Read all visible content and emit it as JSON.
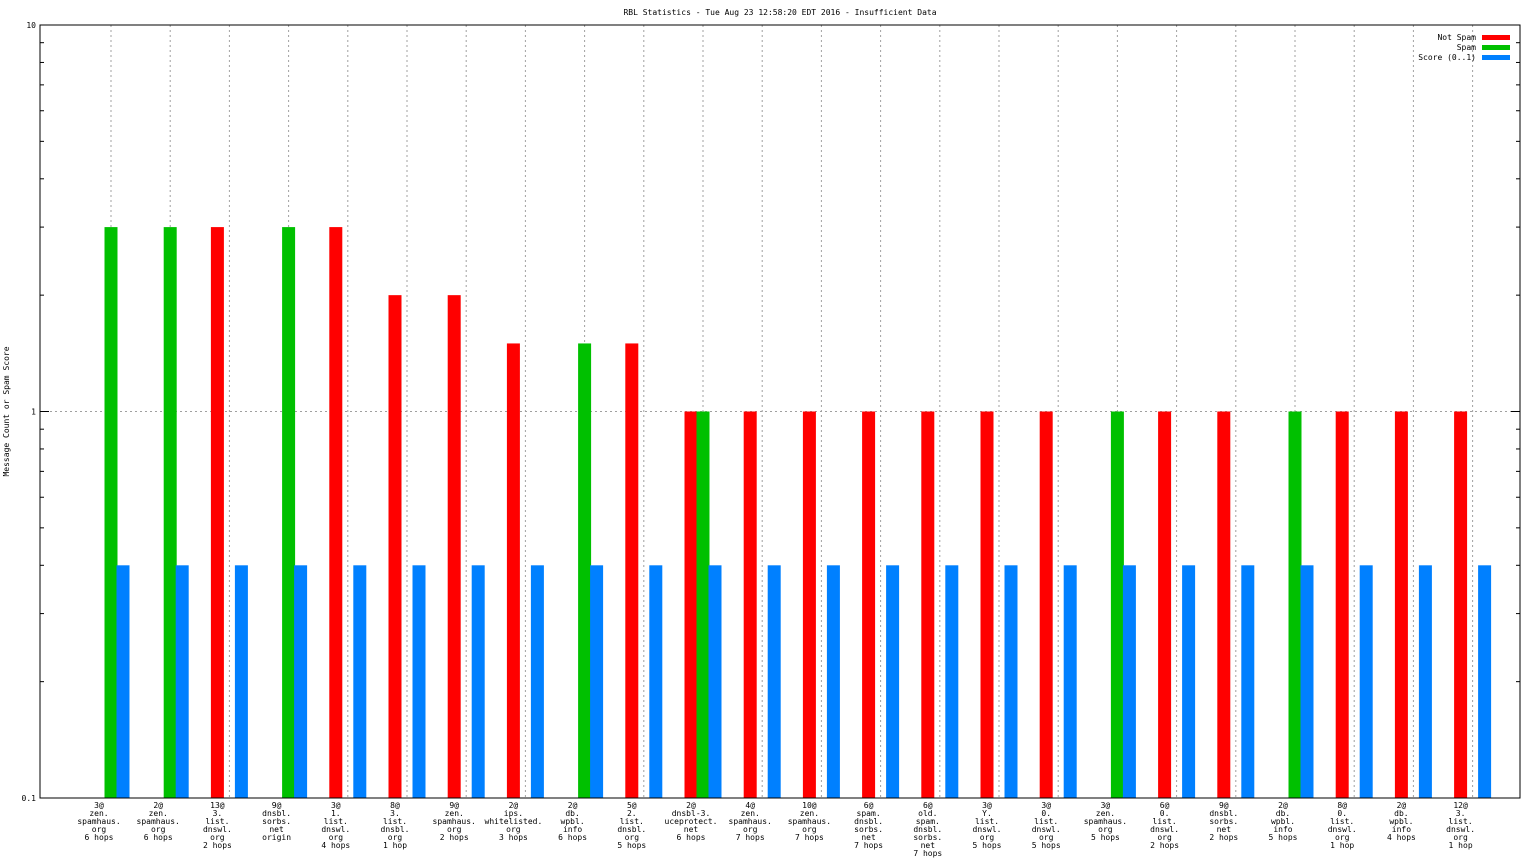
{
  "chart_data": {
    "type": "bar",
    "title": "RBL Statistics - Tue Aug 23 12:58:20 EDT 2016 - Insufficient Data",
    "ylabel": "Message Count or Spam Score",
    "xlabel": "",
    "yscale": "log",
    "ylim": [
      0.1,
      10
    ],
    "yticks": [
      {
        "value": 0.1,
        "label": "0.1"
      },
      {
        "value": 1,
        "label": "1"
      },
      {
        "value": 10,
        "label": "10"
      }
    ],
    "grid": true,
    "legend_position": "top-right",
    "categories": [
      [
        "3@",
        "zen.",
        "spamhaus.",
        "org",
        "6 hops"
      ],
      [
        "2@",
        "zen.",
        "spamhaus.",
        "org",
        "6 hops"
      ],
      [
        "13@",
        "3.",
        "list.",
        "dnswl.",
        "org",
        "2 hops"
      ],
      [
        "9@",
        "dnsbl.",
        "sorbs.",
        "net",
        "origin"
      ],
      [
        "3@",
        "1.",
        "list.",
        "dnswl.",
        "org",
        "4 hops"
      ],
      [
        "8@",
        "3.",
        "list.",
        "dnsbl.",
        "org",
        "1 hop"
      ],
      [
        "9@",
        "zen.",
        "spamhaus.",
        "org",
        "2 hops"
      ],
      [
        "2@",
        "ips.",
        "whitelisted.",
        "org",
        "3 hops"
      ],
      [
        "2@",
        "db.",
        "wpbl.",
        "info",
        "6 hops"
      ],
      [
        "5@",
        "2.",
        "list.",
        "dnsbl.",
        "org",
        "5 hops"
      ],
      [
        "2@",
        "dnsbl-3.",
        "uceprotect.",
        "net",
        "6 hops"
      ],
      [
        "4@",
        "zen.",
        "spamhaus.",
        "org",
        "7 hops"
      ],
      [
        "10@",
        "zen.",
        "spamhaus.",
        "org",
        "7 hops"
      ],
      [
        "6@",
        "spam.",
        "dnsbl.",
        "sorbs.",
        "net",
        "7 hops"
      ],
      [
        "6@",
        "old.",
        "spam.",
        "dnsbl.",
        "sorbs.",
        "net",
        "7 hops"
      ],
      [
        "3@",
        "Y.",
        "list.",
        "dnswl.",
        "org",
        "5 hops"
      ],
      [
        "3@",
        "0.",
        "list.",
        "dnswl.",
        "org",
        "5 hops"
      ],
      [
        "3@",
        "zen.",
        "spamhaus.",
        "org",
        "5 hops"
      ],
      [
        "6@",
        "0.",
        "list.",
        "dnswl.",
        "org",
        "2 hops"
      ],
      [
        "9@",
        "dnsbl.",
        "sorbs.",
        "net",
        "2 hops"
      ],
      [
        "2@",
        "db.",
        "wpbl.",
        "info",
        "5 hops"
      ],
      [
        "8@",
        "0.",
        "list.",
        "dnswl.",
        "org",
        "1 hop"
      ],
      [
        "2@",
        "db.",
        "wpbl.",
        "info",
        "4 hops"
      ],
      [
        "12@",
        "3.",
        "list.",
        "dnswl.",
        "org",
        "1 hop"
      ]
    ],
    "series": [
      {
        "name": "Not Spam",
        "color": "#ff0000",
        "values": [
          null,
          null,
          3,
          null,
          3,
          2,
          2,
          1.5,
          null,
          1.5,
          1,
          1,
          1,
          1,
          1,
          1,
          1,
          null,
          1,
          1,
          null,
          1,
          1,
          1
        ]
      },
      {
        "name": "Spam",
        "color": "#00c000",
        "values": [
          3,
          3,
          null,
          3,
          null,
          null,
          null,
          null,
          1.5,
          null,
          1,
          null,
          null,
          null,
          null,
          null,
          null,
          1,
          null,
          null,
          1,
          null,
          null,
          null
        ]
      },
      {
        "name": "Score (0..1)",
        "color": "#0080ff",
        "values": [
          0.4,
          0.4,
          0.4,
          0.4,
          0.4,
          0.4,
          0.4,
          0.4,
          0.4,
          0.4,
          0.4,
          0.4,
          0.4,
          0.4,
          0.4,
          0.4,
          0.4,
          0.4,
          0.4,
          0.4,
          0.4,
          0.4,
          0.4,
          0.4
        ]
      }
    ]
  }
}
